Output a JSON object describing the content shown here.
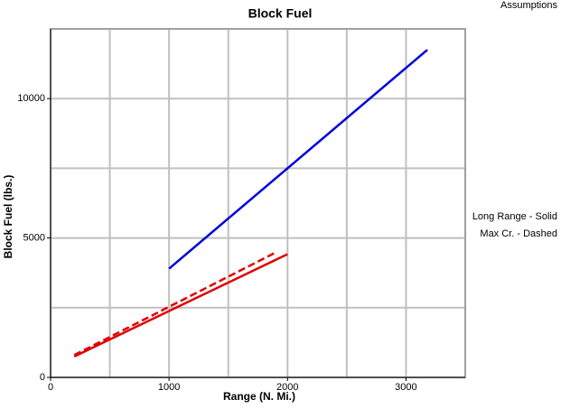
{
  "chart_data": {
    "type": "line",
    "title": "Block Fuel",
    "xlabel": "Range (N. Mi.)",
    "ylabel": "Block Fuel (lbs.)",
    "annotations": [
      "Assumptions",
      "Long Range - Solid",
      "Max Cr. - Dashed"
    ],
    "xlim": [
      0,
      3500
    ],
    "xticks": [
      0,
      1000,
      2000,
      3000
    ],
    "xgrid": [
      500,
      1000,
      1500,
      2000,
      2500,
      3000
    ],
    "ylim": [
      0,
      12500
    ],
    "yticks": [
      0,
      5000,
      10000
    ],
    "ygrid": [
      2500,
      5000,
      7500,
      10000
    ],
    "grid": true,
    "series": [
      {
        "color": "#0000dd",
        "dashed": false,
        "x": [
          1000,
          3180
        ],
        "values": [
          3900,
          11750
        ]
      },
      {
        "color": "#e00000",
        "dashed": false,
        "x": [
          200,
          2000
        ],
        "values": [
          750,
          4420
        ]
      },
      {
        "color": "#e00000",
        "dashed": true,
        "x": [
          200,
          1900
        ],
        "values": [
          800,
          4480
        ]
      }
    ]
  }
}
